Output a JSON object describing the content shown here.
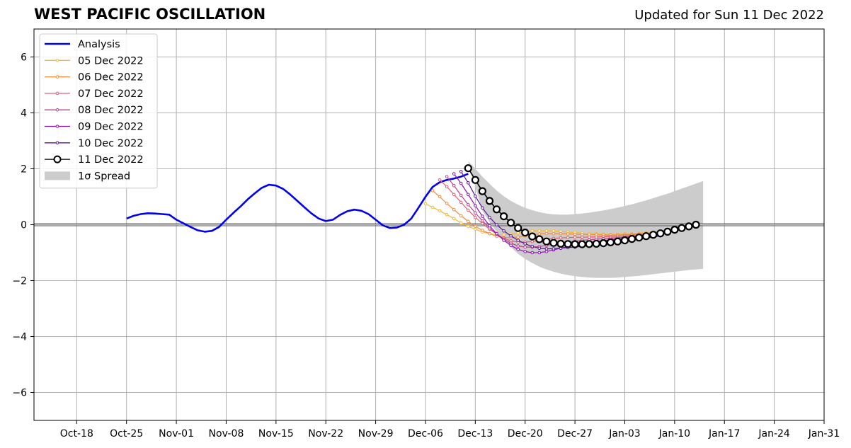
{
  "header": {
    "title": "WEST PACIFIC OSCILLATION",
    "updated": "Updated for Sun 11 Dec 2022"
  },
  "chart_data": {
    "type": "line",
    "title": "WEST PACIFIC OSCILLATION",
    "subtitle": "Updated for Sun 11 Dec 2022",
    "xlabel": "",
    "ylabel": "",
    "xlim": [
      "2022-10-12",
      "2023-01-31"
    ],
    "ylim": [
      -7,
      7
    ],
    "x_ticks": [
      "2022-10-18",
      "2022-10-25",
      "2022-11-01",
      "2022-11-08",
      "2022-11-15",
      "2022-11-22",
      "2022-11-29",
      "2022-12-06",
      "2022-12-13",
      "2022-12-20",
      "2022-12-27",
      "2023-01-03",
      "2023-01-10",
      "2023-01-17",
      "2023-01-24",
      "2023-01-31"
    ],
    "x_tick_labels": [
      "Oct-18",
      "Oct-25",
      "Nov-01",
      "Nov-08",
      "Nov-15",
      "Nov-22",
      "Nov-29",
      "Dec-06",
      "Dec-13",
      "Dec-20",
      "Dec-27",
      "Jan-03",
      "Jan-10",
      "Jan-17",
      "Jan-24",
      "Jan-31"
    ],
    "y_ticks": [
      -6,
      -4,
      -2,
      0,
      2,
      4,
      6
    ],
    "y_tick_labels": [
      "−6",
      "−4",
      "−2",
      "0",
      "2",
      "4",
      "6"
    ],
    "grid": true,
    "legend_position": "top-left",
    "series": [
      {
        "name": "Analysis",
        "color": "#0000ee",
        "start": "2022-10-25",
        "values": [
          0.22,
          0.32,
          0.38,
          0.41,
          0.4,
          0.38,
          0.36,
          0.18,
          0.05,
          -0.08,
          -0.2,
          -0.25,
          -0.22,
          -0.08,
          0.18,
          0.42,
          0.65,
          0.9,
          1.12,
          1.32,
          1.43,
          1.4,
          1.28,
          1.08,
          0.85,
          0.62,
          0.4,
          0.22,
          0.13,
          0.18,
          0.35,
          0.48,
          0.54,
          0.5,
          0.38,
          0.18,
          -0.02,
          -0.12,
          -0.1,
          0.0,
          0.22,
          0.6,
          1.0,
          1.35,
          1.52,
          1.6,
          1.65,
          1.72,
          1.82
        ]
      },
      {
        "name": "05 Dec 2022",
        "color": "#f7b731",
        "start": "2022-12-06",
        "values": [
          0.75,
          0.62,
          0.5,
          0.36,
          0.22,
          0.06,
          -0.06,
          -0.16,
          -0.26,
          -0.32,
          -0.36,
          -0.36,
          -0.34,
          -0.3,
          -0.26,
          -0.22,
          -0.22,
          -0.22,
          -0.22,
          -0.24,
          -0.26,
          -0.28,
          -0.3,
          -0.32,
          -0.33,
          -0.34,
          -0.35,
          -0.34,
          -0.33,
          -0.32,
          -0.3,
          -0.28,
          -0.26,
          -0.24
        ]
      },
      {
        "name": "06 Dec 2022",
        "color": "#f28a3e",
        "start": "2022-12-07",
        "values": [
          1.22,
          1.0,
          0.76,
          0.54,
          0.32,
          0.12,
          -0.06,
          -0.2,
          -0.32,
          -0.42,
          -0.46,
          -0.46,
          -0.44,
          -0.4,
          -0.36,
          -0.33,
          -0.32,
          -0.32,
          -0.32,
          -0.33,
          -0.34,
          -0.35,
          -0.36,
          -0.36,
          -0.37,
          -0.37,
          -0.37,
          -0.36,
          -0.35,
          -0.33,
          -0.31,
          -0.29,
          -0.27
        ]
      },
      {
        "name": "07 Dec 2022",
        "color": "#e35c6e",
        "start": "2022-12-08",
        "values": [
          1.6,
          1.36,
          1.08,
          0.8,
          0.52,
          0.26,
          0.04,
          -0.16,
          -0.34,
          -0.48,
          -0.58,
          -0.62,
          -0.62,
          -0.6,
          -0.56,
          -0.52,
          -0.49,
          -0.47,
          -0.46,
          -0.45,
          -0.45,
          -0.44,
          -0.44,
          -0.43,
          -0.42,
          -0.41,
          -0.4,
          -0.38,
          -0.36,
          -0.34,
          -0.32,
          -0.3
        ]
      },
      {
        "name": "08 Dec 2022",
        "color": "#c23d8e",
        "start": "2022-12-09",
        "values": [
          1.72,
          1.4,
          1.05,
          0.72,
          0.42,
          0.14,
          -0.12,
          -0.34,
          -0.52,
          -0.66,
          -0.76,
          -0.8,
          -0.8,
          -0.78,
          -0.74,
          -0.7,
          -0.66,
          -0.62,
          -0.59,
          -0.56,
          -0.54,
          -0.52,
          -0.5,
          -0.48,
          -0.46,
          -0.44,
          -0.42,
          -0.4,
          -0.37,
          -0.34,
          -0.31
        ]
      },
      {
        "name": "09 Dec 2022",
        "color": "#8e10b5",
        "start": "2022-12-10",
        "values": [
          1.82,
          1.48,
          1.08,
          0.68,
          0.3,
          -0.04,
          -0.32,
          -0.56,
          -0.74,
          -0.88,
          -0.96,
          -1.0,
          -1.0,
          -0.96,
          -0.9,
          -0.84,
          -0.78,
          -0.72,
          -0.68,
          -0.64,
          -0.6,
          -0.57,
          -0.54,
          -0.51,
          -0.48,
          -0.45,
          -0.42,
          -0.39,
          -0.36,
          -0.33
        ]
      },
      {
        "name": "10 Dec 2022",
        "color": "#5b0f9e",
        "start": "2022-12-11",
        "values": [
          1.9,
          1.5,
          1.02,
          0.6,
          0.26,
          0.0,
          -0.22,
          -0.4,
          -0.56,
          -0.68,
          -0.78,
          -0.84,
          -0.86,
          -0.86,
          -0.84,
          -0.82,
          -0.8,
          -0.77,
          -0.74,
          -0.71,
          -0.68,
          -0.65,
          -0.62,
          -0.59,
          -0.56,
          -0.52,
          -0.48,
          -0.44,
          -0.4
        ]
      },
      {
        "name": "11 Dec 2022",
        "color": "#000000",
        "start": "2022-12-12",
        "values": [
          2.02,
          1.6,
          1.2,
          0.85,
          0.55,
          0.3,
          0.07,
          -0.12,
          -0.28,
          -0.42,
          -0.52,
          -0.6,
          -0.65,
          -0.68,
          -0.69,
          -0.7,
          -0.7,
          -0.69,
          -0.68,
          -0.66,
          -0.63,
          -0.6,
          -0.56,
          -0.51,
          -0.46,
          -0.41,
          -0.36,
          -0.31,
          -0.25,
          -0.18,
          -0.12,
          -0.06,
          0.0
        ]
      }
    ],
    "spread": {
      "name": "1σ Spread",
      "color": "#cccccc",
      "start": "2022-12-12",
      "upper": [
        2.27,
        2.0,
        1.72,
        1.46,
        1.22,
        1.02,
        0.85,
        0.72,
        0.6,
        0.52,
        0.45,
        0.4,
        0.37,
        0.36,
        0.36,
        0.38,
        0.4,
        0.43,
        0.47,
        0.51,
        0.56,
        0.61,
        0.67,
        0.73,
        0.8,
        0.87,
        0.95,
        1.03,
        1.11,
        1.2,
        1.29,
        1.38,
        1.47,
        1.56
      ],
      "lower": [
        2.27,
        1.35,
        0.5,
        0.1,
        -0.25,
        -0.52,
        -0.8,
        -1.04,
        -1.22,
        -1.37,
        -1.5,
        -1.6,
        -1.68,
        -1.75,
        -1.8,
        -1.84,
        -1.87,
        -1.89,
        -1.9,
        -1.9,
        -1.9,
        -1.89,
        -1.87,
        -1.85,
        -1.83,
        -1.8,
        -1.77,
        -1.74,
        -1.71,
        -1.68,
        -1.65,
        -1.62,
        -1.6,
        -1.58
      ]
    }
  }
}
